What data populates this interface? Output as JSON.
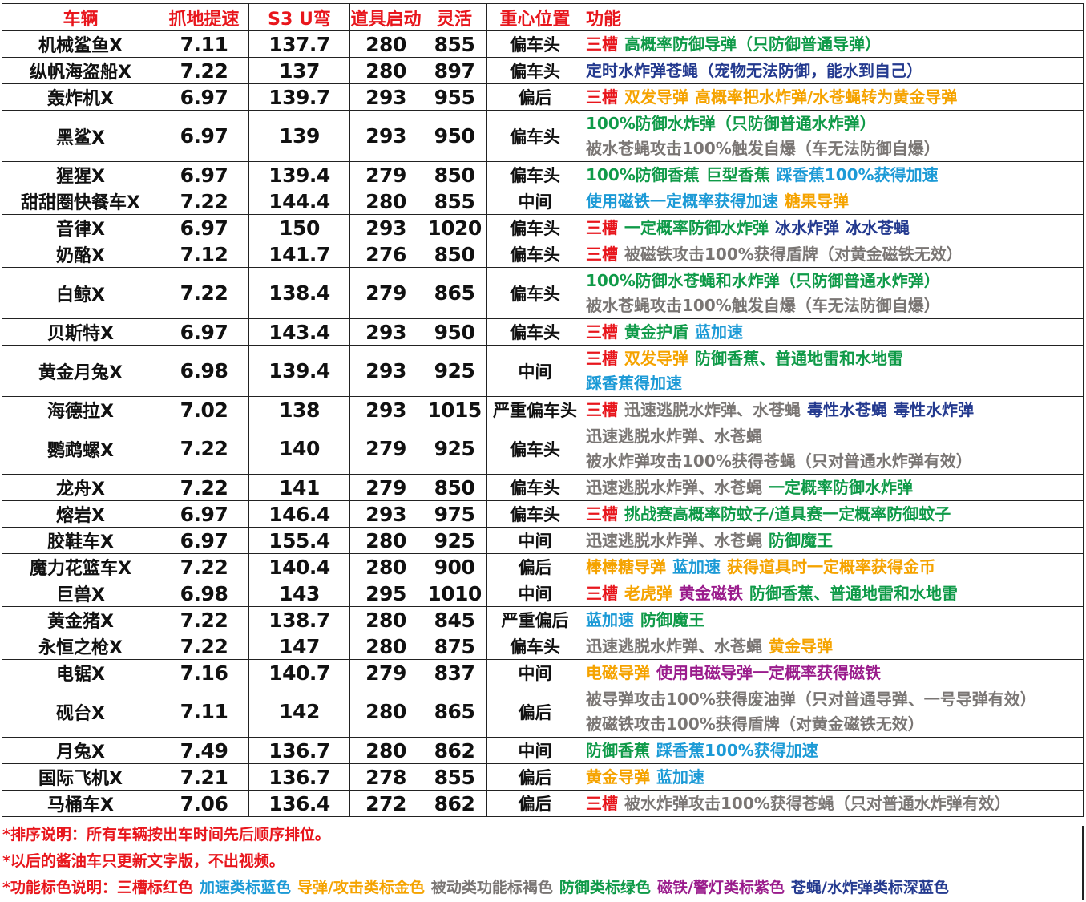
{
  "headers": [
    "车辆",
    "抓地提速",
    "S3 U弯",
    "道具启动",
    "灵活",
    "重心位置",
    "功能"
  ],
  "colors": {
    "red": "#e8161c",
    "blue": "#1c9ad6",
    "gold": "#f5a300",
    "brown": "#7a7674",
    "green": "#0f9a48",
    "purple": "#9a1c8c",
    "navy": "#243a8f"
  },
  "rows": [
    {
      "car": "机械鲨鱼X",
      "grip": "7.11",
      "uturn": "137.7",
      "item": "280",
      "agility": "855",
      "center": "偏车头",
      "lines": [
        [
          {
            "text": "三槽",
            "color": "red"
          },
          {
            "text": "高概率防御导弹（只防御普通导弹）",
            "color": "green"
          }
        ]
      ]
    },
    {
      "car": "纵帆海盗船X",
      "grip": "7.22",
      "uturn": "137",
      "item": "280",
      "agility": "897",
      "center": "偏车头",
      "lines": [
        [
          {
            "text": "定时水炸弹苍蝇（宠物无法防御，能水到自己）",
            "color": "navy"
          }
        ]
      ]
    },
    {
      "car": "轰炸机X",
      "grip": "6.97",
      "uturn": "139.7",
      "item": "293",
      "agility": "955",
      "center": "偏后",
      "lines": [
        [
          {
            "text": "三槽",
            "color": "red"
          },
          {
            "text": "双发导弹",
            "color": "gold"
          },
          {
            "text": "高概率把水炸弹/水苍蝇转为黄金导弹",
            "color": "gold"
          }
        ]
      ]
    },
    {
      "car": "黑鲨X",
      "grip": "6.97",
      "uturn": "139",
      "item": "293",
      "agility": "950",
      "center": "偏车头",
      "lines": [
        [
          {
            "text": "100%防御水炸弹（只防御普通水炸弹）",
            "color": "green"
          }
        ],
        [
          {
            "text": "被水苍蝇攻击100%触发自爆（车无法防御自爆）",
            "color": "brown"
          }
        ]
      ]
    },
    {
      "car": "猩猩X",
      "grip": "6.97",
      "uturn": "139.4",
      "item": "279",
      "agility": "850",
      "center": "偏车头",
      "lines": [
        [
          {
            "text": "100%防御香蕉",
            "color": "green"
          },
          {
            "text": "巨型香蕉",
            "color": "green"
          },
          {
            "text": "踩香蕉100%获得加速",
            "color": "blue"
          }
        ]
      ]
    },
    {
      "car": "甜甜圈快餐车X",
      "grip": "7.22",
      "uturn": "144.4",
      "item": "280",
      "agility": "855",
      "center": "中间",
      "lines": [
        [
          {
            "text": "使用磁铁一定概率获得加速",
            "color": "blue"
          },
          {
            "text": "糖果导弹",
            "color": "gold"
          }
        ]
      ]
    },
    {
      "car": "音律X",
      "grip": "6.97",
      "uturn": "150",
      "item": "293",
      "agility": "1020",
      "center": "偏车头",
      "lines": [
        [
          {
            "text": "三槽",
            "color": "red"
          },
          {
            "text": "一定概率防御水炸弹",
            "color": "green"
          },
          {
            "text": "冰水炸弹",
            "color": "navy"
          },
          {
            "text": "冰水苍蝇",
            "color": "navy"
          }
        ]
      ]
    },
    {
      "car": "奶酪X",
      "grip": "7.12",
      "uturn": "141.7",
      "item": "276",
      "agility": "850",
      "center": "偏车头",
      "lines": [
        [
          {
            "text": "三槽",
            "color": "red"
          },
          {
            "text": "被磁铁攻击100%获得盾牌（对黄金磁铁无效）",
            "color": "brown"
          }
        ]
      ]
    },
    {
      "car": "白鲸X",
      "grip": "7.22",
      "uturn": "138.4",
      "item": "279",
      "agility": "865",
      "center": "偏车头",
      "lines": [
        [
          {
            "text": "100%防御水苍蝇和水炸弹（只防御普通水炸弹）",
            "color": "green"
          }
        ],
        [
          {
            "text": "被水苍蝇攻击100%触发自爆（车无法防御自爆）",
            "color": "brown"
          }
        ]
      ]
    },
    {
      "car": "贝斯特X",
      "grip": "6.97",
      "uturn": "143.4",
      "item": "293",
      "agility": "950",
      "center": "偏车头",
      "lines": [
        [
          {
            "text": "三槽",
            "color": "red"
          },
          {
            "text": "黄金护盾",
            "color": "green"
          },
          {
            "text": "蓝加速",
            "color": "blue"
          }
        ]
      ]
    },
    {
      "car": "黄金月兔X",
      "grip": "6.98",
      "uturn": "139.4",
      "item": "293",
      "agility": "925",
      "center": "中间",
      "lines": [
        [
          {
            "text": "三槽",
            "color": "red"
          },
          {
            "text": "双发导弹",
            "color": "gold"
          },
          {
            "text": "防御香蕉、普通地雷和水地雷",
            "color": "green"
          }
        ],
        [
          {
            "text": "踩香蕉得加速",
            "color": "blue"
          }
        ]
      ]
    },
    {
      "car": "海德拉X",
      "grip": "7.02",
      "uturn": "138",
      "item": "293",
      "agility": "1015",
      "center": "严重偏车头",
      "lines": [
        [
          {
            "text": "三槽",
            "color": "red"
          },
          {
            "text": "迅速逃脱水炸弹、水苍蝇",
            "color": "brown"
          },
          {
            "text": "毒性水苍蝇",
            "color": "navy"
          },
          {
            "text": "毒性水炸弹",
            "color": "navy"
          }
        ]
      ]
    },
    {
      "car": "鹦鹉螺X",
      "grip": "7.22",
      "uturn": "140",
      "item": "279",
      "agility": "925",
      "center": "偏车头",
      "lines": [
        [
          {
            "text": "迅速逃脱水炸弹、水苍蝇",
            "color": "brown"
          }
        ],
        [
          {
            "text": "被水炸弹攻击100%获得苍蝇（只对普通水炸弹有效）",
            "color": "brown"
          }
        ]
      ]
    },
    {
      "car": "龙舟X",
      "grip": "7.22",
      "uturn": "141",
      "item": "279",
      "agility": "850",
      "center": "偏车头",
      "lines": [
        [
          {
            "text": "迅速逃脱水炸弹、水苍蝇",
            "color": "brown"
          },
          {
            "text": "一定概率防御水炸弹",
            "color": "green"
          }
        ]
      ]
    },
    {
      "car": "熔岩X",
      "grip": "6.97",
      "uturn": "146.4",
      "item": "293",
      "agility": "975",
      "center": "偏车头",
      "lines": [
        [
          {
            "text": "三槽",
            "color": "red"
          },
          {
            "text": "挑战赛高概率防蚊子/道具赛一定概率防御蚊子",
            "color": "green"
          }
        ]
      ]
    },
    {
      "car": "胶鞋车X",
      "grip": "6.97",
      "uturn": "155.4",
      "item": "280",
      "agility": "925",
      "center": "中间",
      "lines": [
        [
          {
            "text": "迅速逃脱水炸弹、水苍蝇",
            "color": "brown"
          },
          {
            "text": "防御魔王",
            "color": "green"
          }
        ]
      ]
    },
    {
      "car": "魔力花篮车X",
      "grip": "7.22",
      "uturn": "140.4",
      "item": "280",
      "agility": "900",
      "center": "偏后",
      "lines": [
        [
          {
            "text": "棒棒糖导弹",
            "color": "gold"
          },
          {
            "text": "蓝加速",
            "color": "blue"
          },
          {
            "text": "获得道具时一定概率获得金币",
            "color": "gold"
          }
        ]
      ]
    },
    {
      "car": "巨兽X",
      "grip": "6.98",
      "uturn": "143",
      "item": "295",
      "agility": "1010",
      "center": "中间",
      "lines": [
        [
          {
            "text": "三槽",
            "color": "red"
          },
          {
            "text": "老虎弹",
            "color": "gold"
          },
          {
            "text": "黄金磁铁",
            "color": "purple"
          },
          {
            "text": "防御香蕉、普通地雷和水地雷",
            "color": "green"
          }
        ]
      ]
    },
    {
      "car": "黄金猪X",
      "grip": "7.22",
      "uturn": "138.7",
      "item": "280",
      "agility": "845",
      "center": "严重偏后",
      "lines": [
        [
          {
            "text": "蓝加速",
            "color": "blue"
          },
          {
            "text": "防御魔王",
            "color": "green"
          }
        ]
      ]
    },
    {
      "car": "永恒之枪X",
      "grip": "7.22",
      "uturn": "147",
      "item": "280",
      "agility": "875",
      "center": "偏车头",
      "lines": [
        [
          {
            "text": "迅速逃脱水炸弹、水苍蝇",
            "color": "brown"
          },
          {
            "text": "黄金导弹",
            "color": "gold"
          }
        ]
      ]
    },
    {
      "car": "电锯X",
      "grip": "7.16",
      "uturn": "140.7",
      "item": "279",
      "agility": "837",
      "center": "中间",
      "lines": [
        [
          {
            "text": "电磁导弹",
            "color": "gold"
          },
          {
            "text": "使用电磁导弹一定概率获得磁铁",
            "color": "purple"
          }
        ]
      ]
    },
    {
      "car": "砚台X",
      "grip": "7.11",
      "uturn": "142",
      "item": "280",
      "agility": "865",
      "center": "偏后",
      "lines": [
        [
          {
            "text": "被导弹攻击100%获得废油弹（只对普通导弹、一号导弹有效）",
            "color": "brown"
          }
        ],
        [
          {
            "text": "被磁铁攻击100%获得盾牌（对黄金磁铁无效）",
            "color": "brown"
          }
        ]
      ]
    },
    {
      "car": "月兔X",
      "grip": "7.49",
      "uturn": "136.7",
      "item": "280",
      "agility": "862",
      "center": "中间",
      "lines": [
        [
          {
            "text": "防御香蕉",
            "color": "green"
          },
          {
            "text": "踩香蕉100%获得加速",
            "color": "blue"
          }
        ]
      ]
    },
    {
      "car": "国际飞机X",
      "grip": "7.21",
      "uturn": "136.7",
      "item": "278",
      "agility": "855",
      "center": "偏后",
      "lines": [
        [
          {
            "text": "黄金导弹",
            "color": "gold"
          },
          {
            "text": "蓝加速",
            "color": "blue"
          }
        ]
      ]
    },
    {
      "car": "马桶车X",
      "grip": "7.06",
      "uturn": "136.4",
      "item": "272",
      "agility": "862",
      "center": "偏后",
      "lines": [
        [
          {
            "text": "三槽",
            "color": "red"
          },
          {
            "text": "被水炸弹攻击100%获得苍蝇（只对普通水炸弹有效）",
            "color": "brown"
          }
        ]
      ]
    }
  ],
  "notes": [
    [
      {
        "text": "*排序说明：所有车辆按出车时间先后顺序排位。",
        "color": "red"
      }
    ],
    [
      {
        "text": "*以后的酱油车只更新文字版，不出视频。",
        "color": "red"
      }
    ],
    [
      {
        "text": "*功能标色说明：三槽标红色",
        "color": "red"
      },
      {
        "text": "加速类标蓝色",
        "color": "blue"
      },
      {
        "text": "导弹/攻击类标金色",
        "color": "gold"
      },
      {
        "text": "被动类功能标褐色",
        "color": "brown"
      },
      {
        "text": "防御类标绿色",
        "color": "green"
      },
      {
        "text": "磁铁/警灯类标紫色",
        "color": "purple"
      },
      {
        "text": "苍蝇/水炸弹类标深蓝色",
        "color": "navy"
      }
    ]
  ]
}
